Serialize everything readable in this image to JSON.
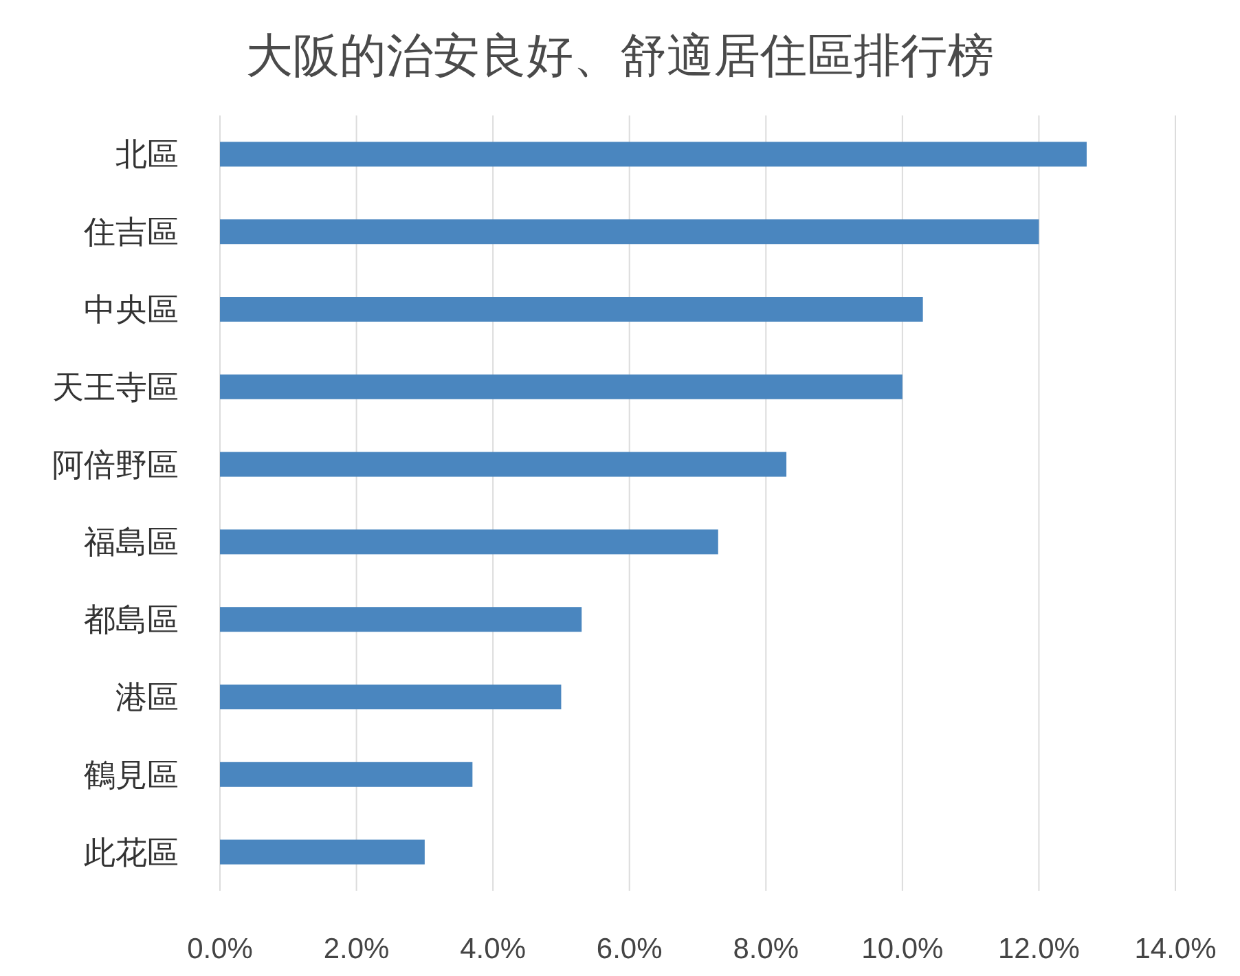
{
  "chart_data": {
    "type": "bar",
    "orientation": "horizontal",
    "title": "大阪的治安良好、舒適居住區排行榜",
    "categories": [
      "北區",
      "住吉區",
      "中央區",
      "天王寺區",
      "阿倍野區",
      "福島區",
      "都島區",
      "港區",
      "鶴見區",
      "此花區"
    ],
    "values": [
      12.7,
      12.0,
      10.3,
      10.0,
      8.3,
      7.3,
      5.3,
      5.0,
      3.7,
      3.0
    ],
    "color": "#4a86bf",
    "xlim": [
      0,
      14
    ],
    "xticks": [
      {
        "value": 0,
        "label": "0.0%"
      },
      {
        "value": 2,
        "label": "2.0%"
      },
      {
        "value": 4,
        "label": "4.0%"
      },
      {
        "value": 6,
        "label": "6.0%"
      },
      {
        "value": 8,
        "label": "8.0%"
      },
      {
        "value": 10,
        "label": "10.0%"
      },
      {
        "value": 12,
        "label": "12.0%"
      },
      {
        "value": 14,
        "label": "14.0%"
      }
    ],
    "grid": "x"
  }
}
